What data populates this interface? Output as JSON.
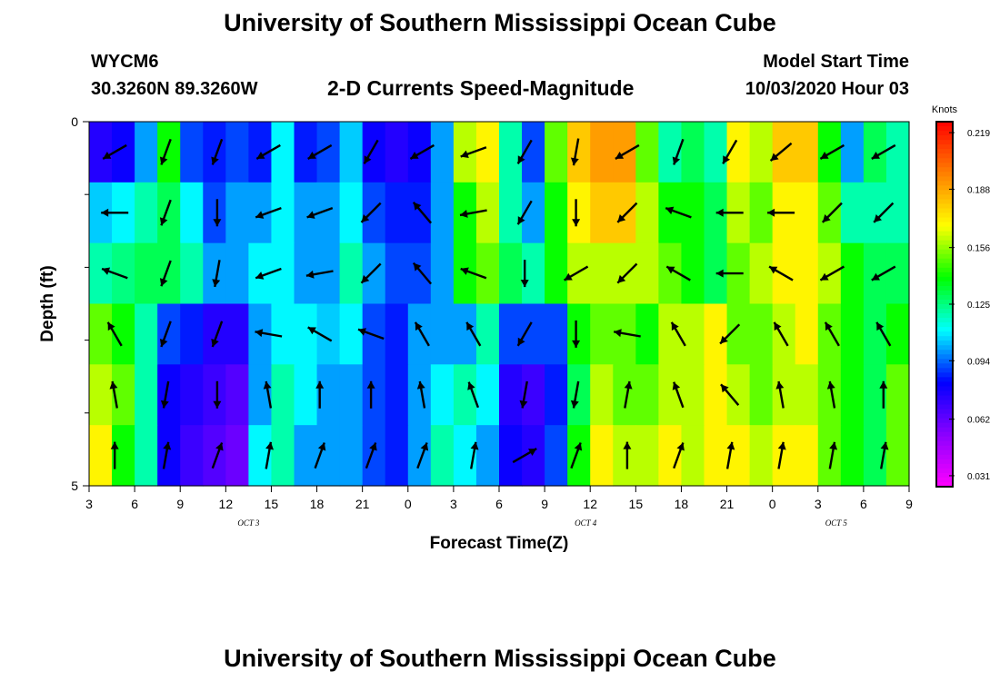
{
  "header": {
    "title": "University of Southern Mississippi Ocean Cube",
    "station_id": "WYCM6",
    "station_coords": "30.3260N 89.3260W",
    "chart_title": "2-D Currents Speed-Magnitude",
    "model_label": "Model Start Time",
    "model_time": "10/03/2020 Hour 03"
  },
  "footer": {
    "title": "University of Southern Mississippi Ocean Cube"
  },
  "chart_data": {
    "type": "heatmap",
    "title": "2-D Currents Speed-Magnitude",
    "xlabel": "Forecast Time(Z)",
    "ylabel": "Depth (ft)",
    "ylim": [
      5,
      0
    ],
    "y_tick_labels": [
      "0",
      "5"
    ],
    "x_tick_labels": [
      "3",
      "6",
      "9",
      "12",
      "15",
      "18",
      "21",
      "0",
      "3",
      "6",
      "9",
      "12",
      "15",
      "18",
      "21",
      "0",
      "3",
      "6",
      "9"
    ],
    "date_labels": [
      {
        "text": "OCT 3",
        "at_tick": 3.5
      },
      {
        "text": "OCT 4",
        "at_tick": 10.9
      },
      {
        "text": "OCT 5",
        "at_tick": 16.4
      }
    ],
    "depth_levels": 5,
    "colorbar": {
      "unit": "Knots",
      "min": 0.025,
      "max": 0.225,
      "tick_labels": [
        "0.219",
        "0.188",
        "0.156",
        "0.125",
        "0.094",
        "0.062",
        "0.031"
      ],
      "tick_values": [
        0.219,
        0.188,
        0.156,
        0.125,
        0.094,
        0.062,
        0.031
      ],
      "palette": [
        "#ff00ff",
        "#8a00ff",
        "#0000ff",
        "#00ffff",
        "#00ff00",
        "#ffff00",
        "#ff8000",
        "#ff0000"
      ]
    },
    "speed_grid": [
      [
        0.075,
        0.08,
        0.1,
        0.14,
        0.09,
        0.085,
        0.09,
        0.085,
        0.11,
        0.085,
        0.09,
        0.105,
        0.08,
        0.075,
        0.08,
        0.1,
        0.16,
        0.17,
        0.12,
        0.09,
        0.15,
        0.18,
        0.19,
        0.19,
        0.15,
        0.12,
        0.13,
        0.12,
        0.17,
        0.16,
        0.18,
        0.18,
        0.14,
        0.1,
        0.13,
        0.12
      ],
      [
        0.105,
        0.11,
        0.12,
        0.13,
        0.11,
        0.09,
        0.1,
        0.1,
        0.11,
        0.1,
        0.1,
        0.11,
        0.09,
        0.085,
        0.085,
        0.1,
        0.14,
        0.16,
        0.12,
        0.1,
        0.14,
        0.17,
        0.18,
        0.18,
        0.16,
        0.14,
        0.14,
        0.13,
        0.16,
        0.15,
        0.17,
        0.17,
        0.15,
        0.12,
        0.12,
        0.12
      ],
      [
        0.12,
        0.125,
        0.13,
        0.13,
        0.12,
        0.1,
        0.1,
        0.11,
        0.11,
        0.1,
        0.1,
        0.12,
        0.1,
        0.09,
        0.09,
        0.1,
        0.14,
        0.15,
        0.13,
        0.12,
        0.14,
        0.16,
        0.16,
        0.16,
        0.16,
        0.15,
        0.14,
        0.13,
        0.15,
        0.16,
        0.17,
        0.17,
        0.16,
        0.14,
        0.13,
        0.13
      ],
      [
        0.15,
        0.14,
        0.12,
        0.09,
        0.085,
        0.075,
        0.075,
        0.1,
        0.11,
        0.11,
        0.105,
        0.11,
        0.09,
        0.085,
        0.1,
        0.1,
        0.1,
        0.12,
        0.09,
        0.09,
        0.09,
        0.14,
        0.15,
        0.15,
        0.14,
        0.16,
        0.16,
        0.17,
        0.15,
        0.15,
        0.16,
        0.17,
        0.15,
        0.14,
        0.13,
        0.14
      ],
      [
        0.16,
        0.15,
        0.12,
        0.08,
        0.075,
        0.07,
        0.065,
        0.1,
        0.12,
        0.11,
        0.1,
        0.1,
        0.09,
        0.085,
        0.1,
        0.11,
        0.12,
        0.11,
        0.075,
        0.07,
        0.085,
        0.13,
        0.16,
        0.15,
        0.15,
        0.16,
        0.16,
        0.17,
        0.16,
        0.15,
        0.16,
        0.16,
        0.15,
        0.14,
        0.13,
        0.15
      ],
      [
        0.17,
        0.14,
        0.12,
        0.08,
        0.07,
        0.065,
        0.06,
        0.11,
        0.12,
        0.1,
        0.1,
        0.1,
        0.09,
        0.085,
        0.1,
        0.12,
        0.11,
        0.1,
        0.08,
        0.075,
        0.09,
        0.14,
        0.17,
        0.16,
        0.16,
        0.17,
        0.16,
        0.17,
        0.17,
        0.16,
        0.17,
        0.17,
        0.15,
        0.14,
        0.13,
        0.15
      ]
    ],
    "vectors_deg_cw_from_north": [
      [
        240,
        200,
        200,
        240,
        240,
        210,
        240,
        250,
        210,
        190,
        240,
        200,
        210,
        230,
        240,
        240
      ],
      [
        270,
        200,
        180,
        250,
        250,
        225,
        320,
        260,
        210,
        180,
        225,
        290,
        270,
        270,
        225,
        225
      ],
      [
        290,
        200,
        190,
        250,
        260,
        225,
        320,
        290,
        180,
        240,
        225,
        300,
        270,
        300,
        240,
        240
      ],
      [
        330,
        200,
        200,
        280,
        300,
        290,
        330,
        330,
        210,
        180,
        280,
        330,
        225,
        330,
        330,
        330
      ],
      [
        350,
        190,
        180,
        350,
        0,
        0,
        350,
        340,
        190,
        190,
        10,
        340,
        320,
        350,
        350,
        0
      ],
      [
        0,
        10,
        20,
        10,
        20,
        20,
        20,
        10,
        60,
        20,
        0,
        20,
        10,
        10,
        10,
        10
      ]
    ]
  }
}
